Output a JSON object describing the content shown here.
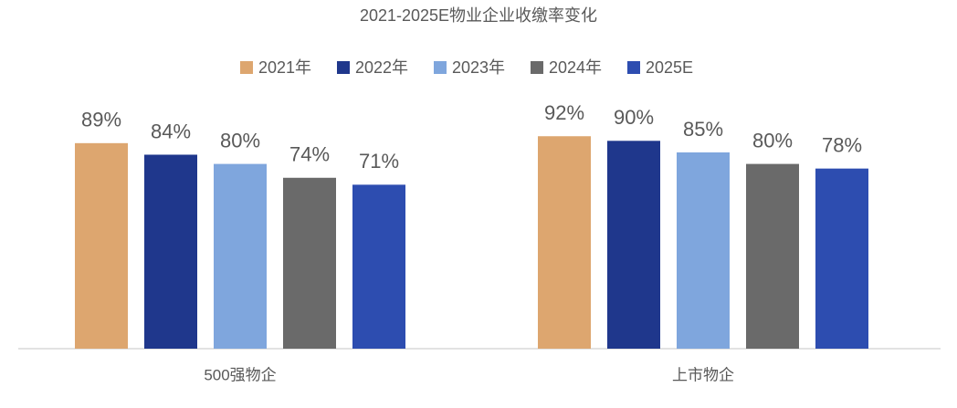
{
  "chart_data": {
    "type": "bar",
    "title": "2021-2025E物业企业收缴率变化",
    "categories": [
      "500强物企",
      "上市物企"
    ],
    "series": [
      {
        "name": "2021年",
        "color": "#dda66f",
        "values": [
          89,
          92
        ],
        "value_labels": [
          "89%",
          "92%"
        ]
      },
      {
        "name": "2022年",
        "color": "#1f378c",
        "values": [
          84,
          90
        ],
        "value_labels": [
          "84%",
          "90%"
        ]
      },
      {
        "name": "2023年",
        "color": "#7fa6dd",
        "values": [
          80,
          85
        ],
        "value_labels": [
          "80%",
          "85%"
        ]
      },
      {
        "name": "2024年",
        "color": "#6a6a6a",
        "values": [
          74,
          80
        ],
        "value_labels": [
          "74%",
          "80%"
        ]
      },
      {
        "name": "2025E",
        "color": "#2d4db0",
        "values": [
          71,
          78
        ],
        "value_labels": [
          "71%",
          "78%"
        ]
      }
    ]
  }
}
